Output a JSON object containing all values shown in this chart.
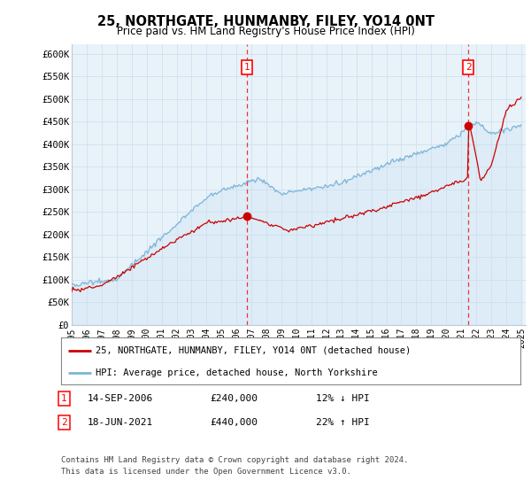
{
  "title": "25, NORTHGATE, HUNMANBY, FILEY, YO14 0NT",
  "subtitle": "Price paid vs. HM Land Registry's House Price Index (HPI)",
  "ylabel_ticks": [
    "£0",
    "£50K",
    "£100K",
    "£150K",
    "£200K",
    "£250K",
    "£300K",
    "£350K",
    "£400K",
    "£450K",
    "£500K",
    "£550K",
    "£600K"
  ],
  "ylim": [
    0,
    620000
  ],
  "yticks": [
    0,
    50000,
    100000,
    150000,
    200000,
    250000,
    300000,
    350000,
    400000,
    450000,
    500000,
    550000,
    600000
  ],
  "hpi_color": "#7db4d8",
  "hpi_fill_color": "#d6e8f5",
  "price_color": "#cc0000",
  "vline_color": "#ee3333",
  "legend_entry_1": "25, NORTHGATE, HUNMANBY, FILEY, YO14 0NT (detached house)",
  "legend_entry_2": "HPI: Average price, detached house, North Yorkshire",
  "transaction_1_date": "14-SEP-2006",
  "transaction_1_price": "£240,000",
  "transaction_1_hpi": "12% ↓ HPI",
  "transaction_2_date": "18-JUN-2021",
  "transaction_2_price": "£440,000",
  "transaction_2_hpi": "22% ↑ HPI",
  "footer": "Contains HM Land Registry data © Crown copyright and database right 2024.\nThis data is licensed under the Open Government Licence v3.0.",
  "bg_color": "#ffffff",
  "grid_color": "#ccddee",
  "chart_bg": "#e8f2f9"
}
